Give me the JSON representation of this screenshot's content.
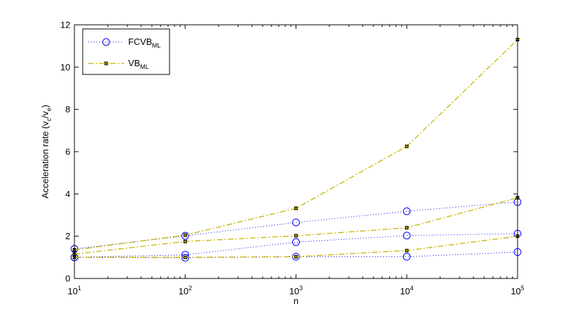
{
  "chart_data": {
    "type": "line",
    "xscale": "log",
    "x": [
      10,
      100,
      1000,
      10000,
      100000
    ],
    "xlim": [
      10,
      100000
    ],
    "ylim": [
      0,
      12
    ],
    "xlabel": "n",
    "ylabel": "Acceleration rate (v",
    "ylabel_sub1": "c",
    "ylabel_mid": "/v",
    "ylabel_sub2": "e",
    "ylabel_end": ")",
    "x_ticks": [
      {
        "base": "10",
        "exp": "1"
      },
      {
        "base": "10",
        "exp": "2"
      },
      {
        "base": "10",
        "exp": "3"
      },
      {
        "base": "10",
        "exp": "4"
      },
      {
        "base": "10",
        "exp": "5"
      }
    ],
    "y_ticks": [
      "0",
      "2",
      "4",
      "6",
      "8",
      "10",
      "12"
    ],
    "legend": [
      {
        "main": "FCVB",
        "sub": "ML",
        "color": "#0000ff",
        "style": "dotted",
        "marker": "circle"
      },
      {
        "main": "VB",
        "sub": "ML",
        "color": "#c8b400",
        "style": "dashdot",
        "marker": "star"
      }
    ],
    "series": [
      {
        "group": 0,
        "values": [
          1.4,
          2.02,
          2.65,
          3.18,
          3.62
        ]
      },
      {
        "group": 0,
        "values": [
          1.0,
          1.12,
          1.72,
          2.03,
          2.12
        ]
      },
      {
        "group": 0,
        "values": [
          1.0,
          0.98,
          1.03,
          1.03,
          1.25
        ]
      },
      {
        "group": 1,
        "values": [
          1.35,
          2.05,
          3.32,
          6.25,
          11.3
        ]
      },
      {
        "group": 1,
        "values": [
          1.15,
          1.75,
          2.02,
          2.4,
          3.82
        ]
      },
      {
        "group": 1,
        "values": [
          1.0,
          1.0,
          1.03,
          1.32,
          2.0
        ]
      }
    ]
  }
}
